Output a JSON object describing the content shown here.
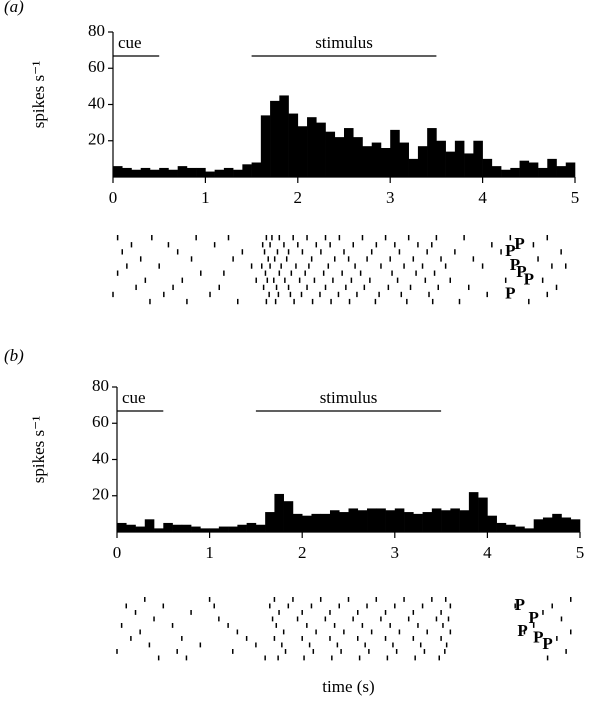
{
  "chart_data": [
    {
      "type": "histogram",
      "panel": "(a)",
      "ylabel": "spikes s⁻¹",
      "color": "#000000",
      "bins": [
        0,
        0.1,
        0.2,
        0.3,
        0.4,
        0.5,
        0.6,
        0.7,
        0.8,
        0.9,
        1.0,
        1.1,
        1.2,
        1.3,
        1.4,
        1.5,
        1.6,
        1.7,
        1.8,
        1.9,
        2.0,
        2.1,
        2.2,
        2.3,
        2.4,
        2.5,
        2.6,
        2.7,
        2.8,
        2.9,
        3.0,
        3.1,
        3.2,
        3.3,
        3.4,
        3.5,
        3.6,
        3.7,
        3.8,
        3.9,
        4.0,
        4.1,
        4.2,
        4.3,
        4.4,
        4.5,
        4.6,
        4.7,
        4.8,
        4.9,
        5.0
      ],
      "values": [
        6,
        5,
        4,
        5,
        4,
        5,
        4,
        6,
        5,
        5,
        3,
        4,
        5,
        4,
        7,
        8,
        34,
        42,
        45,
        35,
        28,
        33,
        30,
        25,
        22,
        27,
        22,
        17,
        19,
        16,
        26,
        19,
        10,
        17,
        27,
        20,
        14,
        20,
        13,
        20,
        10,
        6,
        4,
        5,
        9,
        8,
        5,
        10,
        6,
        8
      ],
      "xlim": [
        0,
        5
      ],
      "xticks": [
        0,
        1,
        2,
        3,
        4,
        5
      ],
      "ylim": [
        0,
        80
      ],
      "yticks": [
        20,
        40,
        60,
        80
      ],
      "annotations": [
        {
          "label": "cue",
          "x": [
            0,
            0.5
          ]
        },
        {
          "label": "stimulus",
          "x": [
            1.5,
            3.5
          ]
        }
      ],
      "raster": [
        [
          0.05,
          0.42,
          0.9,
          1.25,
          1.66,
          1.72,
          1.8,
          1.95,
          2.1,
          2.3,
          2.45,
          2.7,
          2.95,
          3.2,
          3.5,
          3.8,
          4.3,
          4.7
        ],
        [
          0.2,
          0.6,
          1.1,
          1.62,
          1.7,
          1.85,
          2.0,
          2.2,
          2.35,
          2.6,
          2.85,
          3.05,
          3.3,
          3.45,
          4.1,
          4.55
        ],
        [
          0.1,
          0.7,
          1.4,
          1.64,
          1.78,
          1.9,
          2.05,
          2.25,
          2.5,
          2.8,
          3.1,
          3.4,
          3.7,
          4.2,
          4.85
        ],
        [
          0.3,
          0.85,
          1.3,
          1.68,
          1.75,
          1.88,
          2.15,
          2.4,
          2.55,
          2.75,
          3.0,
          3.25,
          3.55,
          3.9,
          4.6
        ],
        [
          0.15,
          0.5,
          1.5,
          1.61,
          1.7,
          1.82,
          1.98,
          2.12,
          2.33,
          2.62,
          2.9,
          3.15,
          3.35,
          3.6,
          4.0,
          4.75,
          4.9
        ],
        [
          0.05,
          0.95,
          1.2,
          1.65,
          1.8,
          1.93,
          2.08,
          2.28,
          2.48,
          2.68,
          3.02,
          3.28,
          3.48,
          4.4
        ],
        [
          0.35,
          0.75,
          1.55,
          1.67,
          1.74,
          1.86,
          2.02,
          2.18,
          2.38,
          2.58,
          2.78,
          3.08,
          3.38,
          3.65,
          4.25,
          4.65
        ],
        [
          0.25,
          0.65,
          1.15,
          1.63,
          1.77,
          1.9,
          2.1,
          2.3,
          2.52,
          2.72,
          2.98,
          3.22,
          3.52,
          3.85,
          4.8
        ],
        [
          0.0,
          0.55,
          1.05,
          1.69,
          1.79,
          1.92,
          2.04,
          2.24,
          2.44,
          2.64,
          2.88,
          3.12,
          3.42,
          4.05,
          4.7
        ],
        [
          0.4,
          0.8,
          1.35,
          1.66,
          1.76,
          1.96,
          2.16,
          2.36,
          2.56,
          2.84,
          3.18,
          3.46,
          3.75,
          4.5
        ]
      ],
      "marker_label": "P",
      "markers": [
        {
          "trial": 1,
          "x": 4.4
        },
        {
          "trial": 2,
          "x": 4.3
        },
        {
          "trial": 4,
          "x": 4.35
        },
        {
          "trial": 5,
          "x": 4.42
        },
        {
          "trial": 6,
          "x": 4.5
        },
        {
          "trial": 8,
          "x": 4.3
        }
      ]
    },
    {
      "type": "histogram",
      "panel": "(b)",
      "ylabel": "spikes s⁻¹",
      "xlabel": "time (s)",
      "color": "#000000",
      "bins": [
        0,
        0.1,
        0.2,
        0.3,
        0.4,
        0.5,
        0.6,
        0.7,
        0.8,
        0.9,
        1.0,
        1.1,
        1.2,
        1.3,
        1.4,
        1.5,
        1.6,
        1.7,
        1.8,
        1.9,
        2.0,
        2.1,
        2.2,
        2.3,
        2.4,
        2.5,
        2.6,
        2.7,
        2.8,
        2.9,
        3.0,
        3.1,
        3.2,
        3.3,
        3.4,
        3.5,
        3.6,
        3.7,
        3.8,
        3.9,
        4.0,
        4.1,
        4.2,
        4.3,
        4.4,
        4.5,
        4.6,
        4.7,
        4.8,
        4.9,
        5.0
      ],
      "values": [
        5,
        4,
        3,
        7,
        2,
        5,
        4,
        4,
        3,
        2,
        2,
        3,
        3,
        4,
        5,
        4,
        11,
        21,
        17,
        10,
        9,
        10,
        10,
        12,
        11,
        13,
        12,
        13,
        13,
        12,
        13,
        11,
        10,
        11,
        13,
        12,
        13,
        12,
        22,
        19,
        9,
        5,
        4,
        3,
        2,
        7,
        8,
        10,
        8,
        7
      ],
      "xlim": [
        0,
        5
      ],
      "xticks": [
        0,
        1,
        2,
        3,
        4,
        5
      ],
      "ylim": [
        0,
        80
      ],
      "yticks": [
        20,
        40,
        60,
        80
      ],
      "annotations": [
        {
          "label": "cue",
          "x": [
            0,
            0.5
          ]
        },
        {
          "label": "stimulus",
          "x": [
            1.5,
            3.5
          ]
        }
      ],
      "raster": [
        [
          0.3,
          1.0,
          1.7,
          1.9,
          2.2,
          2.5,
          2.8,
          3.1,
          3.4,
          3.55,
          4.9
        ],
        [
          0.1,
          0.5,
          1.05,
          1.65,
          1.85,
          2.1,
          2.4,
          2.7,
          3.0,
          3.3,
          3.6,
          4.3,
          4.7
        ],
        [
          0.2,
          0.8,
          1.75,
          2.0,
          2.3,
          2.6,
          2.9,
          3.2,
          3.5,
          4.6
        ],
        [
          0.4,
          1.1,
          1.68,
          1.95,
          2.25,
          2.55,
          2.85,
          3.15,
          3.45,
          3.58,
          4.8
        ],
        [
          0.05,
          0.6,
          1.2,
          1.72,
          2.05,
          2.35,
          2.65,
          2.95,
          3.25,
          3.52,
          4.5
        ],
        [
          0.25,
          1.3,
          1.8,
          2.15,
          2.45,
          2.75,
          3.05,
          3.35,
          3.6,
          4.4,
          4.9
        ],
        [
          0.15,
          0.7,
          1.4,
          1.7,
          2.0,
          2.3,
          2.6,
          2.9,
          3.2,
          3.5,
          4.75
        ],
        [
          0.35,
          0.9,
          1.5,
          1.78,
          2.08,
          2.38,
          2.68,
          2.98,
          3.28,
          3.56
        ],
        [
          0.0,
          0.65,
          1.25,
          1.82,
          2.12,
          2.42,
          2.72,
          3.02,
          3.32,
          3.54,
          4.85
        ],
        [
          0.45,
          0.75,
          1.6,
          1.74,
          2.02,
          2.32,
          2.62,
          2.92,
          3.22,
          3.48,
          4.65
        ]
      ],
      "marker_label": "P",
      "markers": [
        {
          "trial": 1,
          "x": 4.35
        },
        {
          "trial": 3,
          "x": 4.5
        },
        {
          "trial": 5,
          "x": 4.38
        },
        {
          "trial": 6,
          "x": 4.55
        },
        {
          "trial": 7,
          "x": 4.65
        }
      ]
    }
  ]
}
